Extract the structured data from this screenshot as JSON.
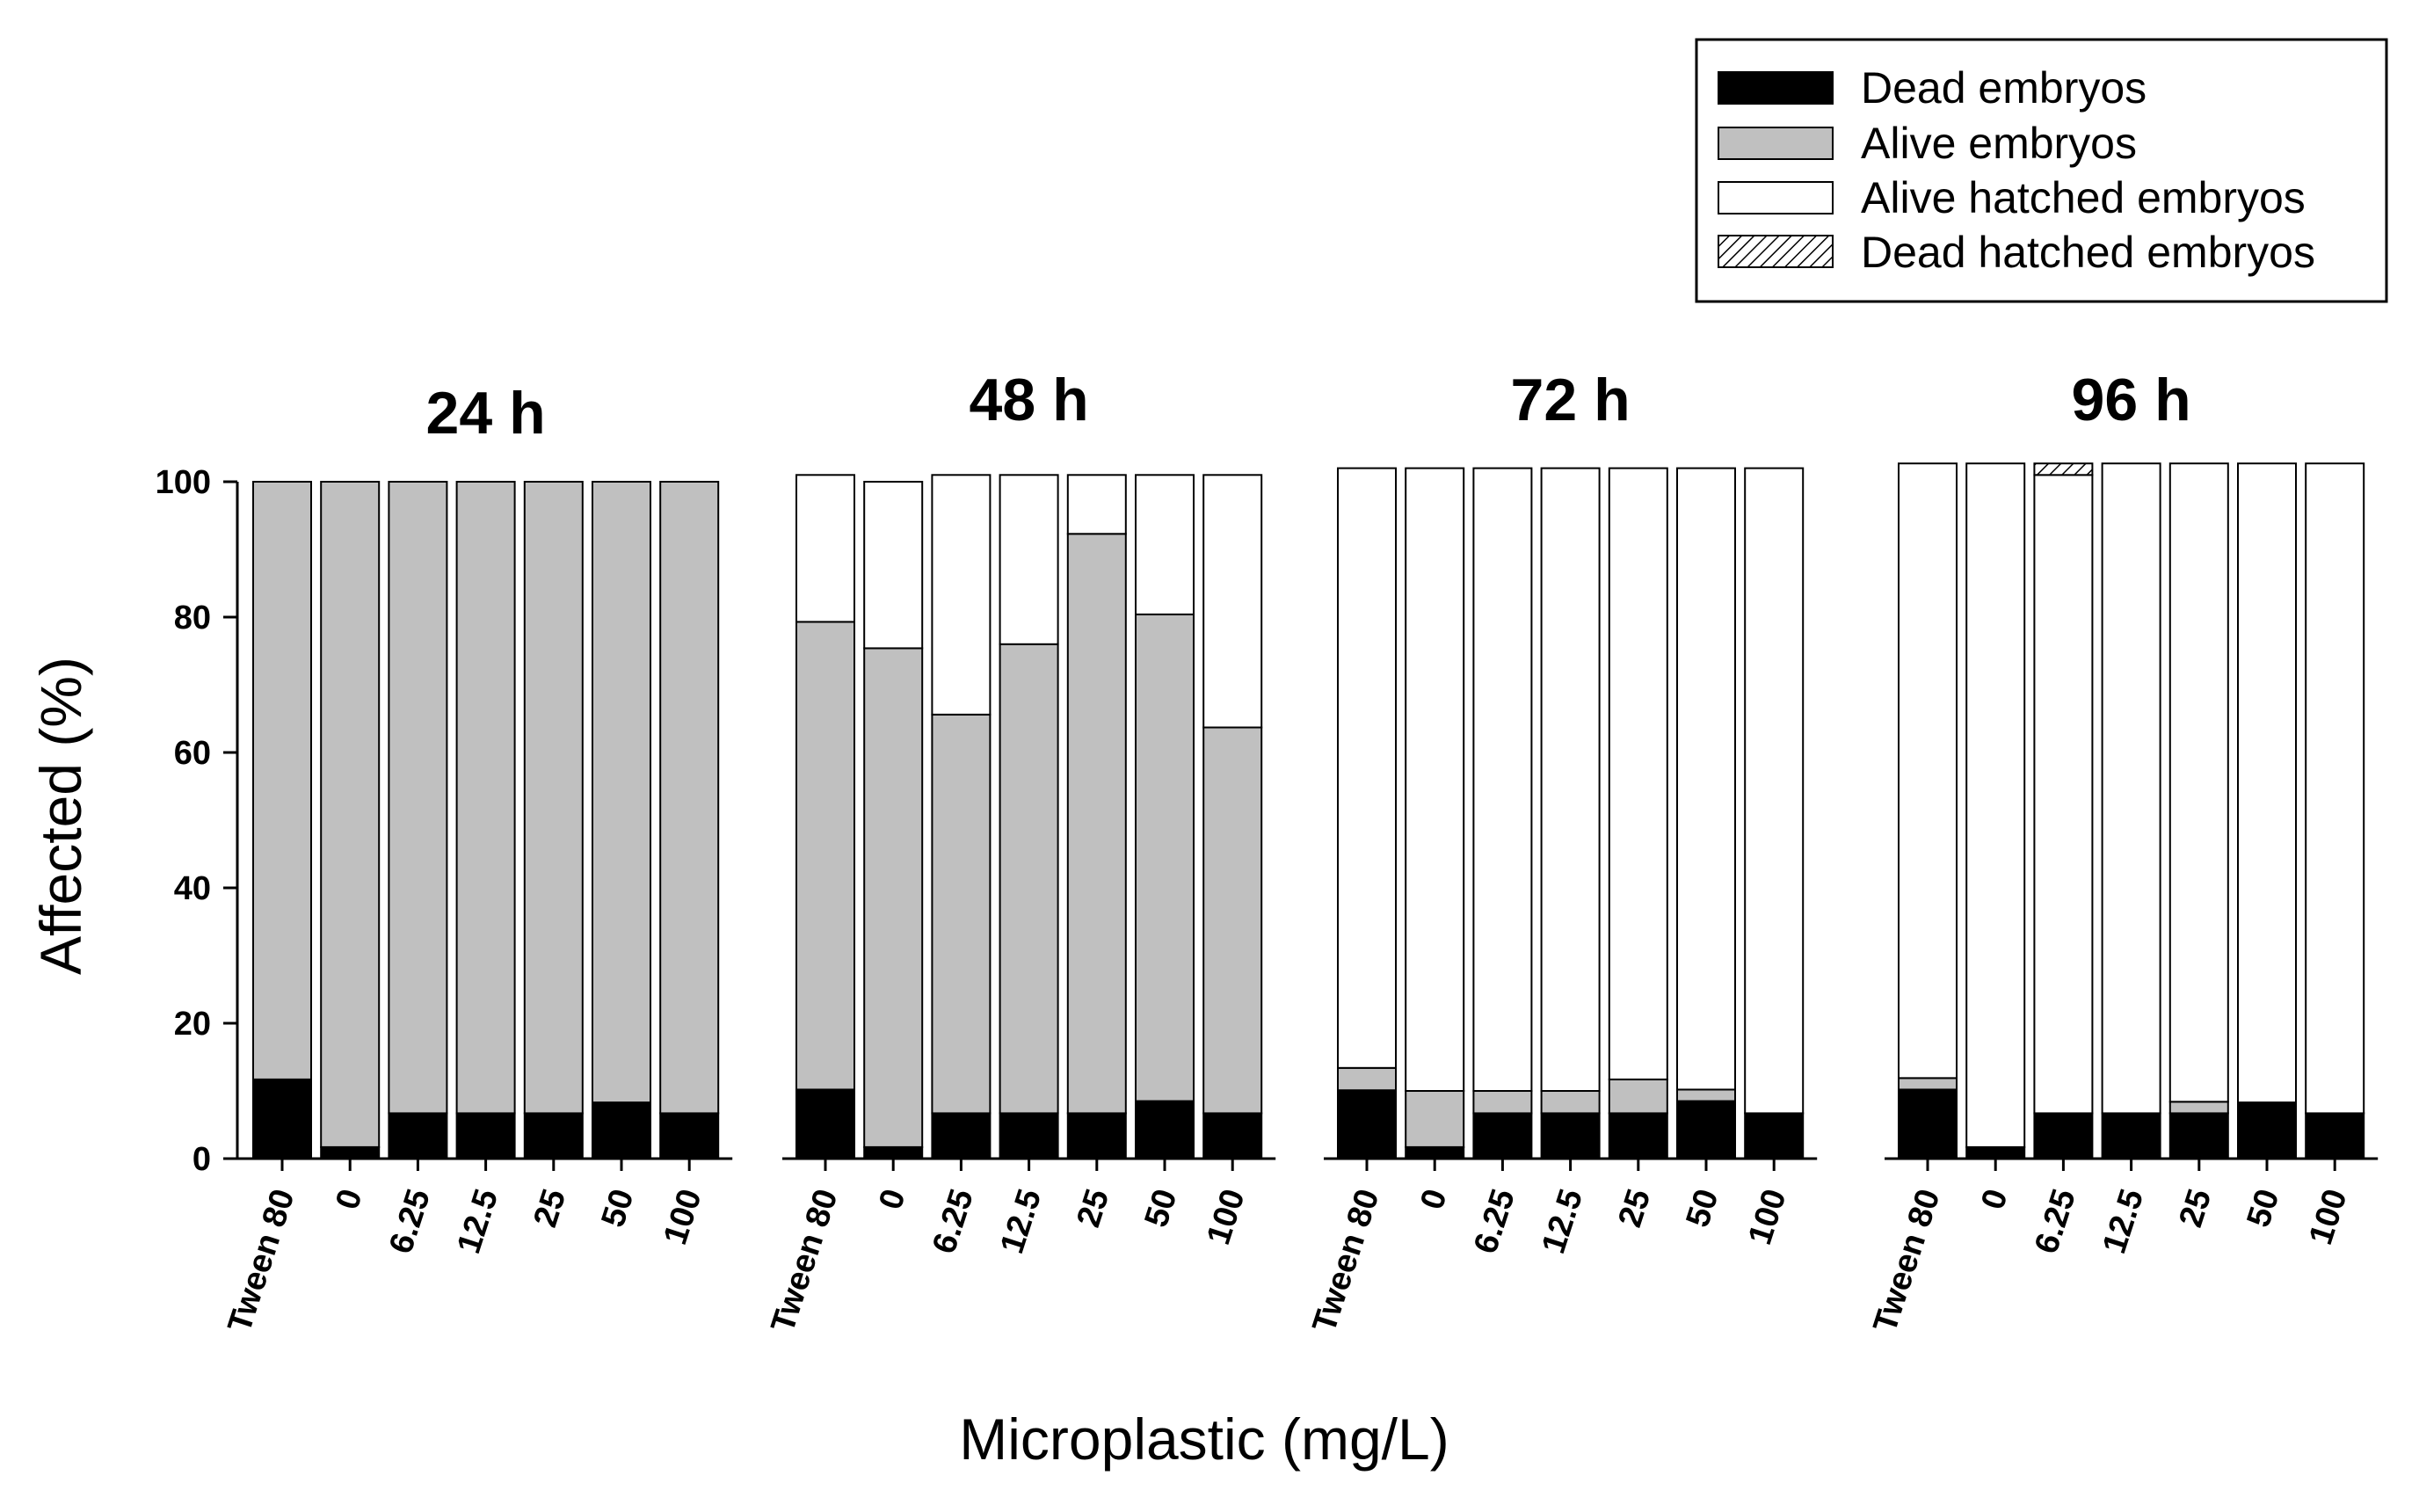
{
  "chart_data": {
    "type": "bar",
    "stacked": true,
    "xlabel": "Microplastic (mg/L)",
    "ylabel": "Affected (%)",
    "ylim": [
      0,
      100
    ],
    "yticks": [
      "0",
      "20",
      "40",
      "60",
      "80",
      "100"
    ],
    "categories": [
      "Tween 80",
      "0",
      "6.25",
      "12.5",
      "25",
      "50",
      "100"
    ],
    "colors": {
      "dead": "#000000",
      "alive": "#c0c0c0",
      "alive_hatched": "#ffffff",
      "dead_hatched": "hatch"
    },
    "legend": {
      "position": "top-right",
      "entries": [
        {
          "key": "dead",
          "label": "Dead embryos"
        },
        {
          "key": "alive",
          "label": "Alive embryos"
        },
        {
          "key": "alive_hatched",
          "label": "Alive hatched embryos"
        },
        {
          "key": "dead_hatched",
          "label": "Dead hatched embryos"
        }
      ]
    },
    "panels": [
      {
        "title": "24 h",
        "series": [
          {
            "key": "dead",
            "name": "Dead embryos",
            "values": [
              11.7,
              1.7,
              6.7,
              6.7,
              6.7,
              8.3,
              6.7
            ]
          },
          {
            "key": "alive",
            "name": "Alive embryos",
            "values": [
              88.3,
              98.3,
              93.3,
              93.3,
              93.3,
              91.7,
              93.3
            ]
          },
          {
            "key": "alive_hatched",
            "name": "Alive hatched embryos",
            "values": [
              0,
              0,
              0,
              0,
              0,
              0,
              0
            ]
          },
          {
            "key": "dead_hatched",
            "name": "Dead hatched embryos",
            "values": [
              0,
              0,
              0,
              0,
              0,
              0,
              0
            ]
          }
        ]
      },
      {
        "title": "48 h",
        "series": [
          {
            "key": "dead",
            "name": "Dead embryos",
            "values": [
              10.2,
              1.7,
              6.7,
              6.7,
              6.7,
              8.5,
              6.7
            ]
          },
          {
            "key": "alive",
            "name": "Alive embryos",
            "values": [
              69.1,
              73.7,
              58.9,
              69.3,
              85.6,
              71.9,
              57.0
            ]
          },
          {
            "key": "alive_hatched",
            "name": "Alive hatched embryos",
            "values": [
              21.7,
              24.6,
              35.4,
              25.0,
              8.7,
              20.6,
              37.3
            ]
          },
          {
            "key": "dead_hatched",
            "name": "Dead hatched embryos",
            "values": [
              0,
              0,
              0,
              0,
              0,
              0,
              0
            ]
          }
        ]
      },
      {
        "title": "72 h",
        "series": [
          {
            "key": "dead",
            "name": "Dead embryos",
            "values": [
              10.1,
              1.7,
              6.7,
              6.7,
              6.7,
              8.5,
              6.7
            ]
          },
          {
            "key": "alive",
            "name": "Alive embryos",
            "values": [
              3.3,
              8.3,
              3.3,
              3.3,
              5.0,
              1.7,
              0
            ]
          },
          {
            "key": "alive_hatched",
            "name": "Alive hatched embryos",
            "values": [
              88.6,
              92.0,
              92.0,
              92.0,
              90.3,
              91.8,
              95.3
            ]
          },
          {
            "key": "dead_hatched",
            "name": "Dead hatched embryos",
            "values": [
              0,
              0,
              0,
              0,
              0,
              0,
              0
            ]
          }
        ]
      },
      {
        "title": "96 h",
        "series": [
          {
            "key": "dead",
            "name": "Dead embryos",
            "values": [
              10.2,
              1.7,
              6.7,
              6.7,
              6.7,
              8.3,
              6.7
            ]
          },
          {
            "key": "alive",
            "name": "Alive embryos",
            "values": [
              1.7,
              0,
              0,
              0,
              1.7,
              0,
              0
            ]
          },
          {
            "key": "alive_hatched",
            "name": "Alive hatched embryos",
            "values": [
              90.8,
              101.0,
              94.3,
              96.0,
              94.3,
              94.4,
              96.0
            ]
          },
          {
            "key": "dead_hatched",
            "name": "Dead hatched embryos",
            "values": [
              0,
              0,
              1.7,
              0,
              0,
              0,
              0
            ]
          }
        ]
      }
    ]
  }
}
